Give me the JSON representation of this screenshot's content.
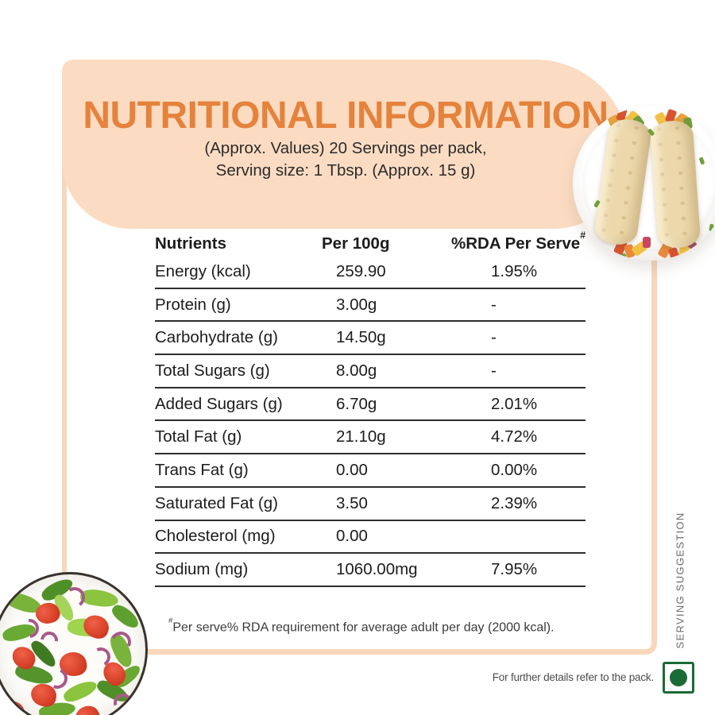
{
  "header": {
    "title": "NUTRITIONAL INFORMATION",
    "subtitle_line1": "(Approx. Values) 20 Servings per pack,",
    "subtitle_line2": "Serving size: 1 Tbsp. (Approx. 15 g)"
  },
  "table": {
    "col_nutrients": "Nutrients",
    "col_per100g": "Per 100g",
    "col_rda": "%RDA Per Serve",
    "col_rda_sup": "#",
    "rows": [
      {
        "name": "Energy (kcal)",
        "per100g": "259.90",
        "rda": "1.95%"
      },
      {
        "name": "Protein (g)",
        "per100g": "3.00g",
        "rda": "-"
      },
      {
        "name": "Carbohydrate (g)",
        "per100g": "14.50g",
        "rda": "-"
      },
      {
        "name": "Total Sugars (g)",
        "per100g": "8.00g",
        "rda": "-"
      },
      {
        "name": "Added Sugars (g)",
        "per100g": "6.70g",
        "rda": "2.01%"
      },
      {
        "name": "Total Fat (g)",
        "per100g": "21.10g",
        "rda": "4.72%"
      },
      {
        "name": "Trans Fat (g)",
        "per100g": "0.00",
        "rda": "0.00%"
      },
      {
        "name": "Saturated Fat (g)",
        "per100g": "3.50",
        "rda": "2.39%"
      },
      {
        "name": "Cholesterol (mg)",
        "per100g": "0.00",
        "rda": ""
      },
      {
        "name": "Sodium (mg)",
        "per100g": "1060.00mg",
        "rda": "7.95%"
      }
    ]
  },
  "footnote": {
    "sup": "#",
    "text": "Per serve% RDA requirement for average adult per day (2000 kcal)."
  },
  "side_label": "SERVING SUGGESTION",
  "footer_note": "For further details refer to the pack.",
  "icons": {
    "veg_symbol": "green-dot-vegetarian-icon",
    "top_right_image": "plate-with-two-veggie-wraps",
    "bottom_left_image": "salad-bowl"
  },
  "colors": {
    "peach_fill": "#FBDCC2",
    "peach_border": "#F8D7BA",
    "title_orange": "#E5823C",
    "table_line": "#2D2D2D",
    "veg_green": "#1A6B36"
  }
}
